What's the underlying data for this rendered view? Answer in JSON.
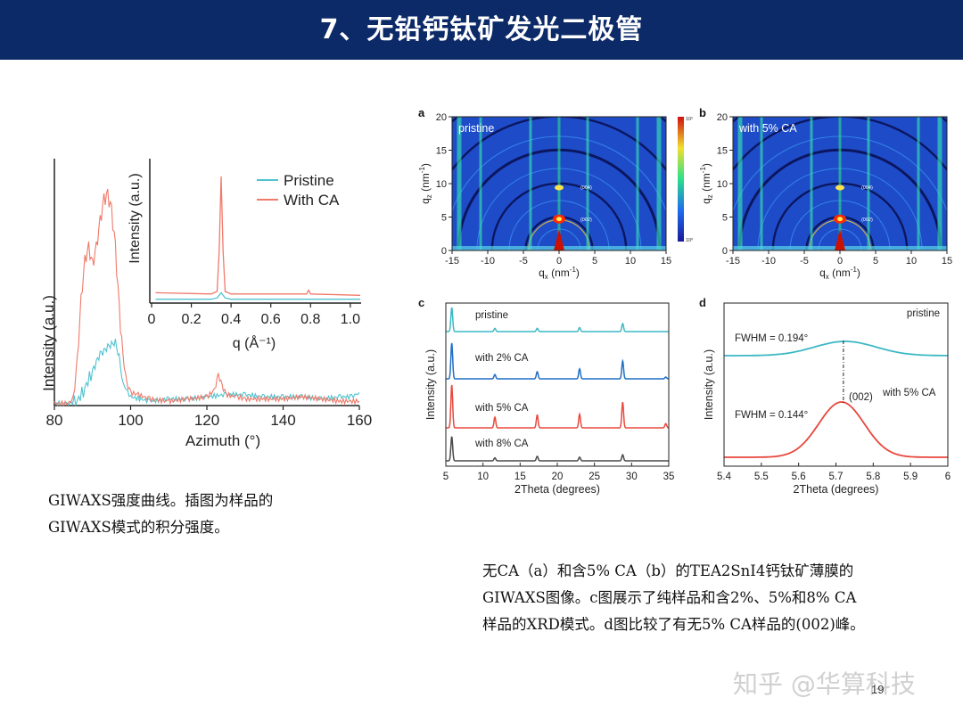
{
  "header": {
    "title": "7、无铅钙钛矿发光二极管"
  },
  "left_caption": {
    "line1": "GIWAXS强度曲线。插图为样品的",
    "line2": "GIWAXS模式的积分强度。"
  },
  "right_caption": {
    "line1": "无CA（a）和含5% CA（b）的TEA2SnI4钙钛矿薄膜的",
    "line2": "GIWAXS图像。c图展示了纯样品和含2%、5%和8% CA",
    "line3": "样品的XRD模式。d图比较了有无5% CA样品的(002)峰。"
  },
  "watermark": "知乎 @华算科技",
  "page_number": "19",
  "chart_data": [
    {
      "id": "azimuth",
      "type": "line",
      "xlabel": "Azimuth (°)",
      "ylabel": "Intensity (a.u.)",
      "xlim": [
        80,
        160
      ],
      "xticks": [
        "80",
        "100",
        "120",
        "140",
        "160"
      ],
      "legend": [
        "Pristine",
        "With CA"
      ],
      "colors": {
        "pristine": "#4fc3cf",
        "with_ca": "#ef7a6a"
      },
      "series": [
        {
          "name": "Pristine",
          "x": [
            80,
            84,
            86,
            88,
            90,
            91,
            92,
            93,
            94,
            95,
            96,
            97,
            98,
            100,
            105,
            110,
            115,
            120,
            125,
            130,
            135,
            140,
            145,
            150,
            155,
            158,
            160
          ],
          "y": [
            1,
            1,
            2,
            8,
            16,
            20,
            24,
            25,
            27,
            28,
            29,
            22,
            10,
            4,
            2,
            3,
            3,
            4,
            5,
            5,
            4,
            4,
            4,
            3,
            4,
            4,
            6
          ]
        },
        {
          "name": "With CA",
          "x": [
            80,
            84,
            85,
            86,
            87,
            88,
            89,
            90,
            91,
            92,
            93,
            94,
            95,
            96,
            97,
            98,
            99,
            100,
            102,
            105,
            110,
            115,
            120,
            122,
            123,
            124,
            125,
            128,
            130,
            135,
            140,
            145,
            150,
            155,
            160
          ],
          "y": [
            1,
            1,
            4,
            20,
            48,
            66,
            72,
            64,
            72,
            84,
            94,
            96,
            89,
            72,
            44,
            22,
            10,
            6,
            5,
            3,
            2,
            3,
            4,
            7,
            14,
            9,
            5,
            4,
            3,
            3,
            3,
            4,
            3,
            2,
            2
          ]
        }
      ]
    },
    {
      "id": "azimuth_inset",
      "type": "line",
      "xlabel": "q (Å⁻¹)",
      "ylabel": "Intensity (a.u.)",
      "xlim": [
        0,
        1.05
      ],
      "xticks": [
        "0",
        "0.2",
        "0.4",
        "0.6",
        "0.8",
        "1.0"
      ],
      "series": [
        {
          "name": "Pristine",
          "x": [
            0.02,
            0.3,
            0.33,
            0.35,
            0.37,
            0.4,
            0.6,
            0.8,
            1.05
          ],
          "y": [
            3,
            3,
            4,
            8,
            4,
            3,
            3,
            3,
            3
          ]
        },
        {
          "name": "With CA",
          "x": [
            0.02,
            0.3,
            0.33,
            0.34,
            0.35,
            0.36,
            0.37,
            0.4,
            0.6,
            0.78,
            0.79,
            0.8,
            1.05
          ],
          "y": [
            8,
            7,
            9,
            40,
            98,
            40,
            9,
            7,
            7,
            7,
            10,
            7,
            6
          ]
        }
      ]
    },
    {
      "id": "giwaxs_a",
      "type": "heatmap",
      "panel_label": "a",
      "annotation": "pristine",
      "xlabel": "qx (nm⁻¹)",
      "ylabel": "qz (nm⁻¹)",
      "xlim": [
        -15,
        15
      ],
      "ylim": [
        0,
        20
      ],
      "xticks": [
        "-15",
        "-10",
        "-5",
        "0",
        "5",
        "10",
        "15"
      ],
      "yticks": [
        "0",
        "5",
        "10",
        "15",
        "20"
      ],
      "peaks": [
        "(002)",
        "(004)"
      ],
      "colorbar": {
        "top": "10²",
        "bottom": "10⁰"
      }
    },
    {
      "id": "giwaxs_b",
      "type": "heatmap",
      "panel_label": "b",
      "annotation": "with 5% CA",
      "xlabel": "qx (nm⁻¹)",
      "ylabel": "qz (nm⁻¹)",
      "xlim": [
        -15,
        15
      ],
      "ylim": [
        0,
        20
      ],
      "xticks": [
        "-15",
        "-10",
        "-5",
        "0",
        "5",
        "10",
        "15"
      ],
      "yticks": [
        "0",
        "5",
        "10",
        "15",
        "20"
      ],
      "peaks": [
        "(002)",
        "(004)"
      ]
    },
    {
      "id": "xrd",
      "type": "line",
      "panel_label": "c",
      "xlabel": "2Theta (degrees)",
      "ylabel": "Intensity (a.u.)",
      "xlim": [
        5,
        35
      ],
      "xticks": [
        "5",
        "10",
        "15",
        "20",
        "25",
        "30",
        "35"
      ],
      "series": [
        {
          "name": "pristine",
          "color": "#3cb8c4",
          "peaks": [
            [
              5.8,
              0.9
            ],
            [
              11.6,
              0.12
            ],
            [
              17.3,
              0.12
            ],
            [
              23.0,
              0.15
            ],
            [
              28.8,
              0.3
            ]
          ]
        },
        {
          "name": "with 2% CA",
          "color": "#1f6fc6",
          "peaks": [
            [
              5.8,
              1.0
            ],
            [
              11.6,
              0.12
            ],
            [
              17.3,
              0.2
            ],
            [
              23.0,
              0.28
            ],
            [
              28.8,
              0.5
            ],
            [
              34.6,
              0.05
            ]
          ]
        },
        {
          "name": "with 5% CA",
          "color": "#e8483d",
          "peaks": [
            [
              5.8,
              1.0
            ],
            [
              11.6,
              0.25
            ],
            [
              17.3,
              0.3
            ],
            [
              23.0,
              0.32
            ],
            [
              28.8,
              0.6
            ],
            [
              34.6,
              0.1
            ]
          ]
        },
        {
          "name": "with 8% CA",
          "color": "#4a4a4a",
          "peaks": [
            [
              5.8,
              0.8
            ],
            [
              11.6,
              0.1
            ],
            [
              17.3,
              0.15
            ],
            [
              23.0,
              0.12
            ],
            [
              28.8,
              0.2
            ]
          ]
        }
      ]
    },
    {
      "id": "fwhm",
      "type": "line",
      "panel_label": "d",
      "xlabel": "2Theta (degrees)",
      "ylabel": "Intensity (a.u.)",
      "xlim": [
        5.4,
        6
      ],
      "xticks": [
        "5.4",
        "5.5",
        "5.6",
        "5.7",
        "5.8",
        "5.9",
        "6"
      ],
      "annotations": [
        "pristine",
        "FWHM = 0.194°",
        "(002)",
        "with 5% CA",
        "FWHM = 0.144°"
      ],
      "series": [
        {
          "name": "pristine",
          "color": "#3cb8c4",
          "center": 5.725,
          "fwhm": 0.194
        },
        {
          "name": "with 5% CA",
          "color": "#e8483d",
          "center": 5.715,
          "fwhm": 0.144
        }
      ]
    }
  ]
}
